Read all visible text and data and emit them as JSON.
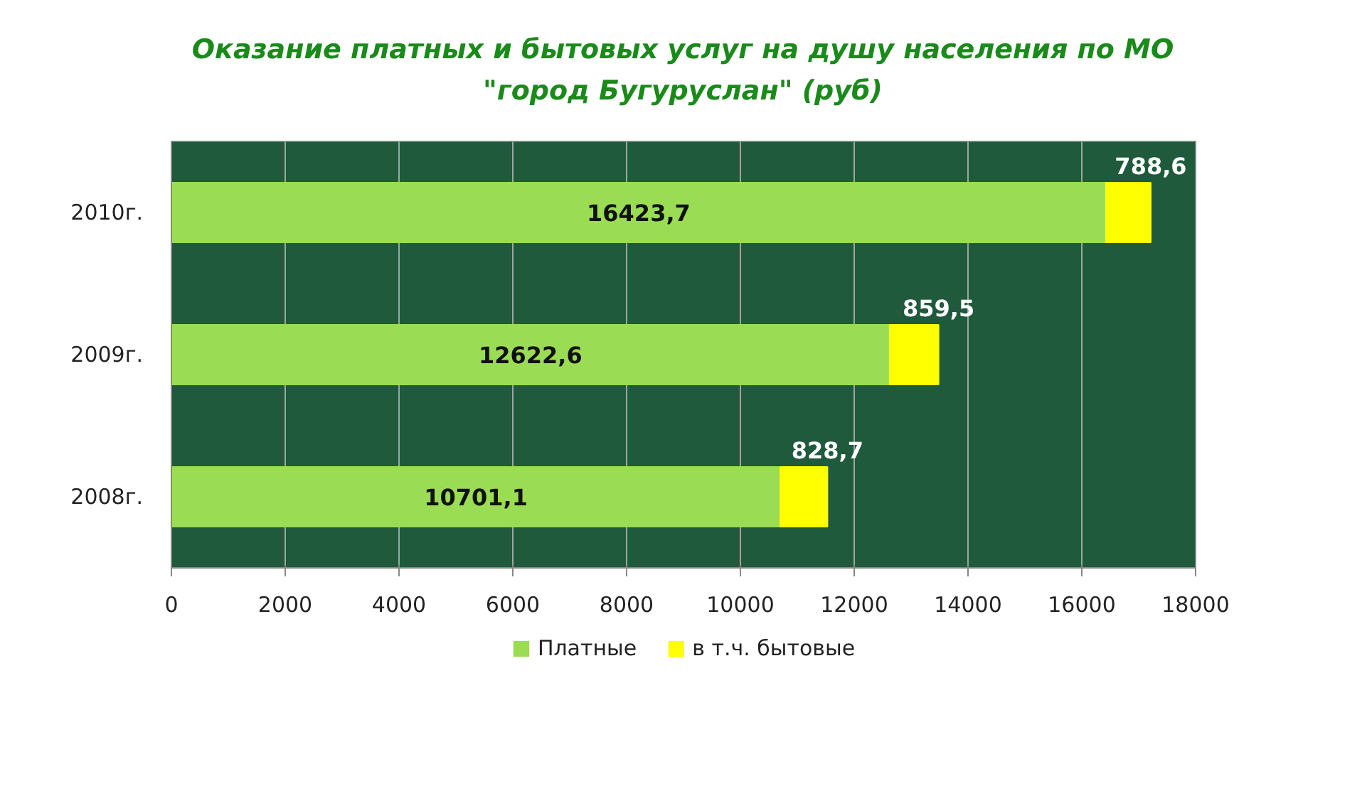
{
  "chart_data": {
    "type": "bar",
    "orientation": "horizontal",
    "stacked": true,
    "title": "Оказание платных и бытовых услуг на душу населения по МО \"город Бугуруслан\" (руб)",
    "categories": [
      "2010г.",
      "2009г.",
      "2008г."
    ],
    "series": [
      {
        "name": "Платные",
        "color": "#9bdc55",
        "values": [
          16423.7,
          12622.6,
          10701.1
        ],
        "value_labels": [
          "16423,7",
          "12622,6",
          "10701,1"
        ]
      },
      {
        "name": "в т.ч. бытовые",
        "color": "#ffff00",
        "values": [
          788.6,
          859.5,
          828.7
        ],
        "value_labels": [
          "788,6",
          "859,5",
          "828,7"
        ]
      }
    ],
    "xlim": [
      0,
      18000
    ],
    "xticks": [
      0,
      2000,
      4000,
      6000,
      8000,
      10000,
      12000,
      14000,
      16000,
      18000
    ],
    "grid": "x",
    "legend": "bottom"
  }
}
